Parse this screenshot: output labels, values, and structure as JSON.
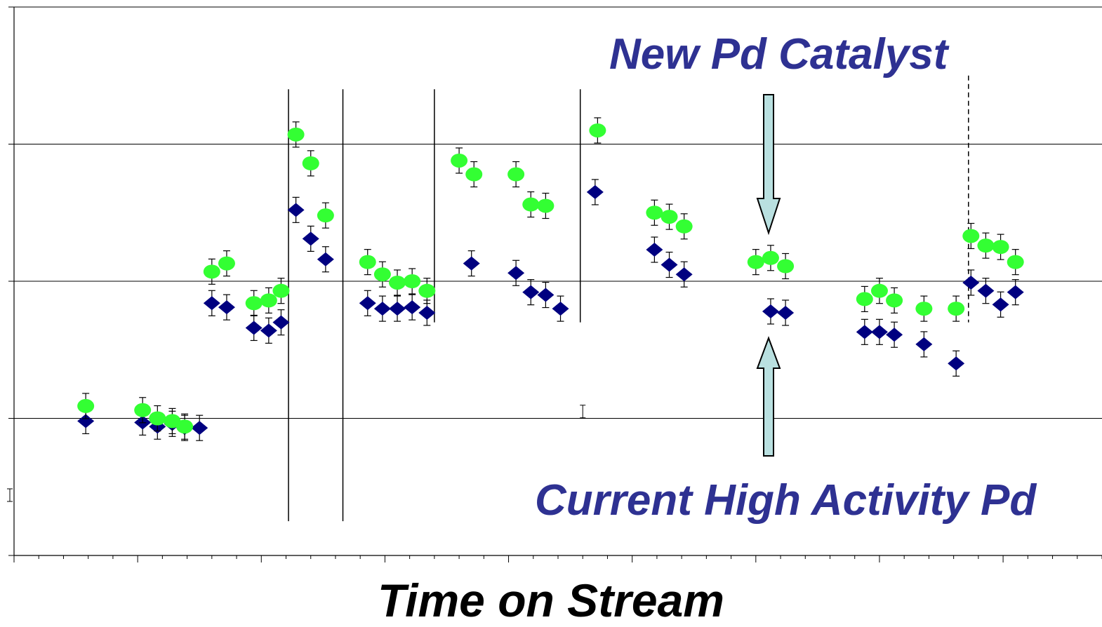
{
  "chart_data": {
    "type": "scatter",
    "title": "",
    "xlabel": "Time on Stream",
    "ylabel": "",
    "xlim": [
      0,
      44
    ],
    "ylim": [
      0,
      4
    ],
    "grid": "horizontal",
    "colors": {
      "green": "#33ff33",
      "blue": "#000080",
      "annotation": "#2e3192",
      "arrow": "#b9e0e0"
    },
    "annotations": {
      "new_catalyst": "New Pd Catalyst",
      "current_catalyst": "Current High Activity Pd"
    },
    "regime_separators": [
      11.1,
      13.3,
      17.0,
      22.9,
      38.6
    ],
    "series": [
      {
        "marker": "diamond",
        "color": "#000080",
        "points": [
          [
            2.9,
            0.98
          ],
          [
            5.2,
            0.97
          ],
          [
            5.8,
            0.94
          ],
          [
            6.4,
            0.96
          ],
          [
            6.9,
            0.93
          ],
          [
            7.5,
            0.93
          ],
          [
            8.0,
            1.84
          ],
          [
            8.6,
            1.81
          ],
          [
            9.7,
            1.66
          ],
          [
            10.3,
            1.64
          ],
          [
            10.8,
            1.7
          ],
          [
            11.4,
            2.52
          ],
          [
            12.0,
            2.31
          ],
          [
            12.6,
            2.16
          ],
          [
            14.3,
            1.84
          ],
          [
            14.9,
            1.8
          ],
          [
            15.5,
            1.8
          ],
          [
            16.1,
            1.81
          ],
          [
            16.7,
            1.77
          ],
          [
            18.5,
            2.13
          ],
          [
            20.3,
            2.06
          ],
          [
            20.9,
            1.92
          ],
          [
            21.5,
            1.9
          ],
          [
            22.1,
            1.8
          ],
          [
            23.5,
            2.65
          ],
          [
            25.9,
            2.23
          ],
          [
            26.5,
            2.12
          ],
          [
            27.1,
            2.05
          ],
          [
            30.6,
            1.78
          ],
          [
            31.2,
            1.77
          ],
          [
            34.4,
            1.63
          ],
          [
            35.0,
            1.63
          ],
          [
            35.6,
            1.61
          ],
          [
            36.8,
            1.54
          ],
          [
            38.1,
            1.4
          ],
          [
            38.7,
            1.99
          ],
          [
            39.3,
            1.93
          ],
          [
            39.9,
            1.83
          ],
          [
            40.5,
            1.92
          ]
        ]
      },
      {
        "marker": "circle",
        "color": "#33ff33",
        "points": [
          [
            2.9,
            1.09
          ],
          [
            5.2,
            1.06
          ],
          [
            5.8,
            1.0
          ],
          [
            6.4,
            0.98
          ],
          [
            6.9,
            0.94
          ],
          [
            8.0,
            2.07
          ],
          [
            8.6,
            2.13
          ],
          [
            9.7,
            1.84
          ],
          [
            10.3,
            1.86
          ],
          [
            10.8,
            1.93
          ],
          [
            11.4,
            3.07
          ],
          [
            12.0,
            2.86
          ],
          [
            12.6,
            2.48
          ],
          [
            14.3,
            2.14
          ],
          [
            14.9,
            2.05
          ],
          [
            15.5,
            1.99
          ],
          [
            16.1,
            2.0
          ],
          [
            16.7,
            1.93
          ],
          [
            18.0,
            2.88
          ],
          [
            18.6,
            2.78
          ],
          [
            20.3,
            2.78
          ],
          [
            20.9,
            2.56
          ],
          [
            21.5,
            2.55
          ],
          [
            23.6,
            3.1
          ],
          [
            25.9,
            2.5
          ],
          [
            26.5,
            2.47
          ],
          [
            27.1,
            2.4
          ],
          [
            30.0,
            2.14
          ],
          [
            30.6,
            2.17
          ],
          [
            31.2,
            2.11
          ],
          [
            34.4,
            1.87
          ],
          [
            35.0,
            1.93
          ],
          [
            35.6,
            1.86
          ],
          [
            36.8,
            1.8
          ],
          [
            38.1,
            1.8
          ],
          [
            38.7,
            2.33
          ],
          [
            39.3,
            2.26
          ],
          [
            39.9,
            2.25
          ],
          [
            40.5,
            2.14
          ]
        ]
      }
    ]
  }
}
